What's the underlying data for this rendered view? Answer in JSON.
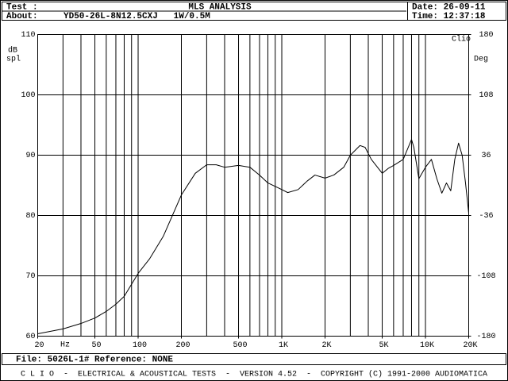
{
  "header": {
    "test_label": "Test :",
    "title": "MLS ANALYSIS",
    "date": "Date: 26-09-11",
    "about_label": "About:",
    "about": "YD50-26L-8N12.5CXJ   1W/0.5M",
    "time": "Time: 12:37:18"
  },
  "chart_data": {
    "type": "line",
    "y_label_line1": "dB",
    "y_label_line2": "spl",
    "y2_label": "Deg",
    "x_unit": "Hz",
    "brand": "Clio",
    "x": [
      20,
      30,
      40,
      50,
      60,
      70,
      80,
      100,
      120,
      150,
      200,
      250,
      300,
      350,
      400,
      500,
      600,
      700,
      800,
      1000,
      1100,
      1300,
      1500,
      1700,
      2000,
      2300,
      2700,
      3000,
      3500,
      3800,
      4200,
      5000,
      5500,
      6000,
      7000,
      8000,
      8300,
      9000,
      10000,
      11000,
      12000,
      13000,
      14000,
      15000,
      16000,
      17000,
      18000,
      19000,
      20000
    ],
    "values": [
      60.4,
      61.2,
      62.1,
      63.0,
      64.1,
      65.3,
      66.6,
      70.4,
      72.8,
      76.6,
      83.4,
      87.0,
      88.4,
      88.4,
      88.0,
      88.3,
      88.0,
      86.7,
      85.4,
      84.3,
      83.8,
      84.3,
      85.7,
      86.7,
      86.2,
      86.7,
      88.0,
      90.0,
      91.6,
      91.3,
      89.3,
      87.0,
      87.8,
      88.3,
      89.3,
      92.6,
      91.3,
      86.1,
      88.0,
      89.3,
      86.1,
      83.7,
      85.4,
      84.1,
      89.3,
      92.0,
      90.0,
      85.4,
      80.4
    ],
    "color": "#000000",
    "xscale": "log",
    "grid": true,
    "xlim": [
      20,
      20000
    ],
    "ylim": [
      60,
      110
    ],
    "yticks": [
      60,
      70,
      80,
      90,
      100,
      110
    ],
    "y2lim": [
      -180,
      180
    ],
    "y2ticks": [
      180,
      108,
      36,
      -36,
      -108,
      -180
    ],
    "xticks": [
      20,
      50,
      100,
      200,
      500,
      {
        "value": 1000,
        "label": "1K"
      },
      {
        "value": 2000,
        "label": "2K"
      },
      {
        "value": 5000,
        "label": "5K"
      },
      {
        "value": 10000,
        "label": "10K"
      },
      {
        "value": 20000,
        "label": "20K"
      }
    ],
    "xgrid": [
      20,
      30,
      40,
      50,
      60,
      70,
      80,
      90,
      100,
      200,
      300,
      400,
      500,
      600,
      700,
      800,
      900,
      1000,
      2000,
      3000,
      4000,
      5000,
      6000,
      7000,
      8000,
      9000,
      10000,
      20000
    ]
  },
  "footer": {
    "file": "File: 5026L-1# Reference: NONE",
    "credits": "C L I O  -  ELECTRICAL & ACOUSTICAL TESTS  -  VERSION 4.52  -  COPYRIGHT (C) 1991-2000 AUDIOMATICA"
  }
}
